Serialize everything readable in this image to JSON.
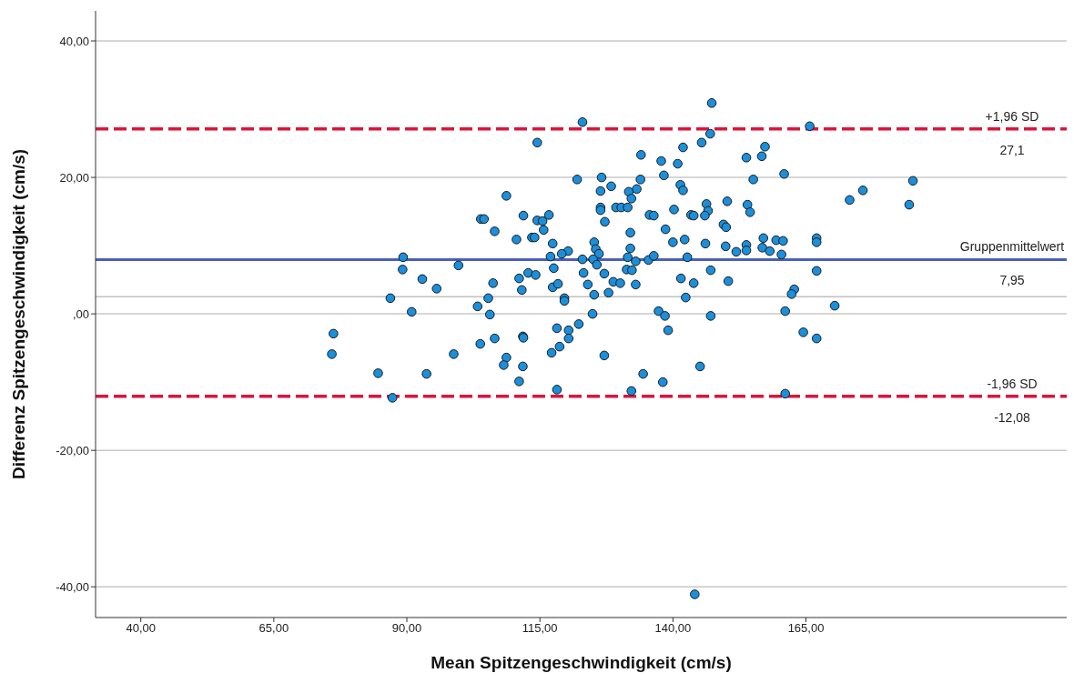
{
  "chart_data": {
    "type": "scatter",
    "xlabel": "Mean Spitzengeschwindigkeit (cm/s)",
    "ylabel": "Differenz Spitzengeschwindigkeit (cm/s)",
    "xlim": [
      31.5,
      214
    ],
    "ylim": [
      -44.5,
      44.4
    ],
    "xticks": [
      {
        "value": 40,
        "label": "40,00"
      },
      {
        "value": 65,
        "label": "65,00"
      },
      {
        "value": 90,
        "label": "90,00"
      },
      {
        "value": 115,
        "label": "115,00"
      },
      {
        "value": 140,
        "label": "140,00"
      },
      {
        "value": 165,
        "label": "165,00"
      }
    ],
    "yticks": [
      {
        "value": -40,
        "label": "-40,00"
      },
      {
        "value": -20,
        "label": "-20,00"
      },
      {
        "value": 0,
        "label": ",00"
      },
      {
        "value": 20,
        "label": "20,00"
      },
      {
        "value": 40,
        "label": "40,00"
      }
    ],
    "grid": "y",
    "marker": "circle",
    "x": [
      76.2,
      75.9,
      84.6,
      87.3,
      93.7,
      98.8,
      103.8,
      106.5,
      108.7,
      108.2,
      111.1,
      111.8,
      111.8,
      89.3,
      89.2,
      92.9,
      95.6,
      99.7,
      86.9,
      90.9,
      103.3,
      105.3,
      105.6,
      106.2,
      108.7,
      103.9,
      104.5,
      106.5,
      110.6,
      111.9,
      111.1,
      111.6,
      114.5,
      123.0,
      122.0,
      126.6,
      126.4,
      128.4,
      134.0,
      137.8,
      138.3,
      133.9,
      131.7,
      133.2,
      132.2,
      140.9,
      141.9,
      145.4,
      147.0,
      147.3,
      141.4,
      141.9,
      114.5,
      115.5,
      116.7,
      115.7,
      113.5,
      114.0,
      117.4,
      126.4,
      126.4,
      129.3,
      130.3,
      131.5,
      127.2,
      132.0,
      135.6,
      136.4,
      140.2,
      143.4,
      143.9,
      146.3,
      146.6,
      146.0,
      138.6,
      140.0,
      142.2,
      146.1,
      125.2,
      125.5,
      126.1,
      132.0,
      120.3,
      119.1,
      117.0,
      123.0,
      125.0,
      125.7,
      131.5,
      133.0,
      135.4,
      136.4,
      142.7,
      147.1,
      117.6,
      112.8,
      114.2,
      123.2,
      127.1,
      131.3,
      132.3,
      141.5,
      143.9,
      117.4,
      118.4,
      124.0,
      127.9,
      128.8,
      130.1,
      133.0,
      125.2,
      119.6,
      119.6,
      142.4,
      137.3,
      138.5,
      124.9,
      147.1,
      111.9,
      118.2,
      120.4,
      122.3,
      120.4,
      118.7,
      117.2,
      127.1,
      139.1,
      118.2,
      132.2,
      134.4,
      138.1,
      145.1,
      165.7,
      157.3,
      153.8,
      156.7,
      160.9,
      155.1,
      185.1,
      175.7,
      173.2,
      184.4,
      150.2,
      154.0,
      154.5,
      149.5,
      150.0,
      149.9,
      151.9,
      153.8,
      153.8,
      157.0,
      156.8,
      158.2,
      159.4,
      160.7,
      160.4,
      167.0,
      167.0,
      150.4,
      167.0,
      162.8,
      162.3,
      170.4,
      161.1,
      164.5,
      167.0,
      161.1,
      144.1
    ],
    "series": [
      {
        "color": "#1a8fdb",
        "values": [
          -2.9,
          -5.9,
          -8.7,
          -12.3,
          -8.8,
          -5.9,
          -4.4,
          -3.6,
          -6.4,
          -7.5,
          -9.9,
          -7.7,
          -3.3,
          8.3,
          6.5,
          5.1,
          3.7,
          7.1,
          2.3,
          0.3,
          1.1,
          2.3,
          -0.1,
          4.5,
          17.3,
          13.9,
          13.9,
          12.1,
          10.9,
          14.4,
          5.2,
          3.5,
          25.1,
          28.1,
          19.7,
          20.0,
          18.0,
          18.7,
          23.3,
          22.4,
          20.3,
          19.7,
          17.9,
          18.3,
          16.9,
          22.0,
          24.4,
          25.1,
          26.4,
          30.9,
          18.9,
          18.1,
          13.7,
          13.6,
          14.5,
          12.3,
          11.2,
          11.2,
          10.3,
          15.6,
          15.2,
          15.6,
          15.6,
          15.6,
          13.5,
          11.9,
          14.5,
          14.4,
          15.3,
          14.5,
          14.4,
          16.1,
          15.1,
          14.4,
          12.4,
          10.5,
          10.9,
          10.3,
          10.5,
          9.5,
          8.8,
          9.6,
          9.2,
          8.8,
          8.4,
          8.0,
          8.0,
          7.2,
          8.3,
          7.7,
          7.9,
          8.5,
          8.3,
          6.4,
          6.7,
          6.0,
          5.7,
          6.0,
          5.9,
          6.5,
          6.4,
          5.2,
          4.5,
          3.9,
          4.4,
          4.3,
          3.1,
          4.7,
          4.5,
          4.3,
          2.8,
          2.3,
          1.9,
          2.4,
          0.4,
          -0.3,
          0.0,
          -0.3,
          -3.5,
          -2.1,
          -2.4,
          -1.5,
          -3.6,
          -4.8,
          -5.7,
          -6.1,
          -2.4,
          -11.1,
          -11.3,
          -8.8,
          -10.0,
          -7.7,
          27.5,
          24.5,
          22.9,
          23.1,
          20.5,
          19.7,
          19.5,
          18.1,
          16.7,
          16.0,
          16.5,
          16.0,
          14.9,
          13.1,
          12.7,
          9.9,
          9.1,
          10.1,
          9.3,
          11.1,
          9.7,
          9.2,
          10.8,
          10.7,
          8.7,
          11.1,
          10.5,
          4.8,
          6.3,
          3.6,
          2.9,
          1.2,
          0.4,
          -2.7,
          -3.6,
          -11.7,
          -41.1
        ]
      }
    ],
    "ref_lines": [
      {
        "axis": "y",
        "value": 27.1,
        "label": "+1,96 SD",
        "color": "#dc143c",
        "line_style": "dashed"
      },
      {
        "axis": "y",
        "value": 7.95,
        "label": "Gruppenmittelwert",
        "color": "#4a5fbf",
        "line_style": "solid"
      },
      {
        "axis": "y",
        "value": -12.08,
        "label": "-1,96 SD",
        "color": "#dc143c",
        "line_style": "dashed"
      },
      {
        "axis": "y",
        "value": 2.5,
        "color": "#c0c0c0",
        "line_style": "solid"
      }
    ],
    "annotations": [
      {
        "text": "27,1",
        "y": 27.1
      },
      {
        "text": "7,95",
        "y": 7.95
      },
      {
        "text": "-12,08",
        "y": -12.08
      }
    ]
  }
}
